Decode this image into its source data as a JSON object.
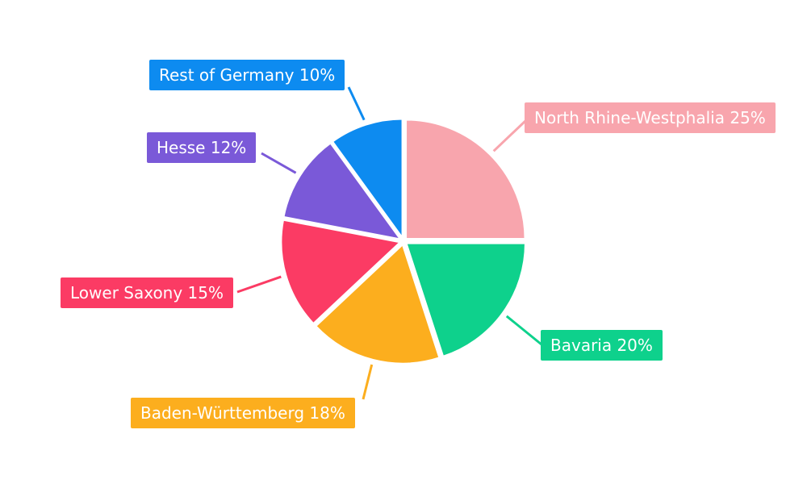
{
  "chart_data": {
    "type": "pie",
    "title": "",
    "categories": [
      "North Rhine-Westphalia",
      "Bavaria",
      "Baden-Württemberg",
      "Lower Saxony",
      "Hesse",
      "Rest of Germany"
    ],
    "values": [
      25,
      20,
      18,
      15,
      12,
      10
    ],
    "labels": [
      "North Rhine-Westphalia 25%",
      "Bavaria 20%",
      "Baden-Württemberg 18%",
      "Lower Saxony 15%",
      "Hesse 12%",
      "Rest of Germany 10%"
    ],
    "colors": [
      "#F8A5AD",
      "#0ED18C",
      "#FCAE1E",
      "#FB3B64",
      "#7A59D8",
      "#0D8BF0"
    ],
    "label_text_color": "#FFFFFF",
    "background": "#FFFFFF",
    "start_angle_deg": 0,
    "direction": "clockwise",
    "legend_position": "none",
    "slice_separator_color": "#FFFFFF"
  }
}
